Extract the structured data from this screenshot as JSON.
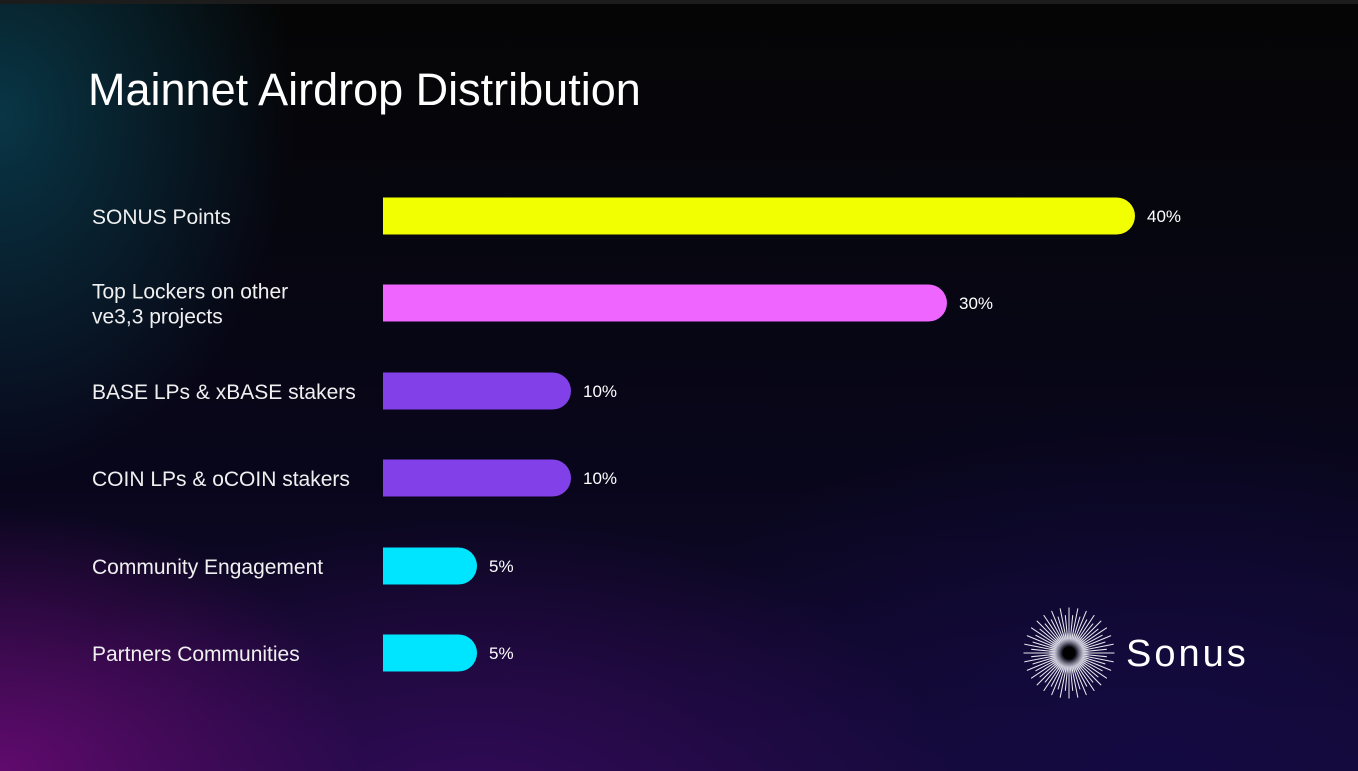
{
  "title": "Mainnet Airdrop Distribution",
  "brand": {
    "name": "Sonus",
    "logo_icon": "starburst-icon"
  },
  "chart_data": {
    "type": "bar",
    "orientation": "horizontal",
    "title": "Mainnet Airdrop Distribution",
    "categories": [
      [
        "SONUS Points"
      ],
      [
        "Top Lockers on other",
        "ve3,3 projects"
      ],
      [
        "BASE LPs & xBASE stakers"
      ],
      [
        "COIN LPs & oCOIN stakers"
      ],
      [
        "Community Engagement"
      ],
      [
        "Partners Communities"
      ]
    ],
    "values": [
      40,
      30,
      10,
      10,
      5,
      5
    ],
    "value_labels": [
      "40%",
      "30%",
      "10%",
      "10%",
      "5%",
      "5%"
    ],
    "colors": [
      "#f2ff00",
      "#ee66ff",
      "#8240e8",
      "#8240e8",
      "#00e5ff",
      "#00e5ff"
    ],
    "unit": "%",
    "xlim": [
      0,
      40
    ],
    "grid": false,
    "legend": "none"
  }
}
